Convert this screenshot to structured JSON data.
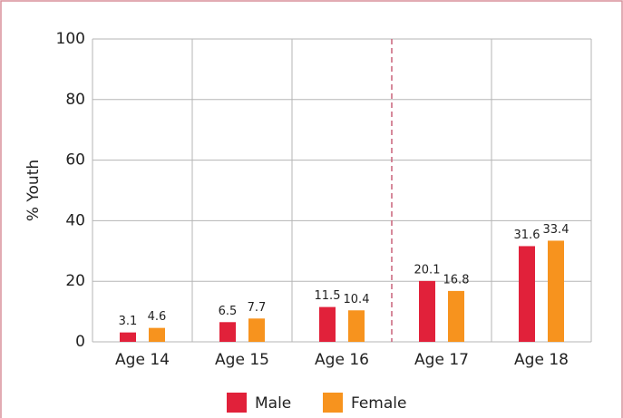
{
  "chart_data": {
    "type": "bar",
    "y_label": "% Youth",
    "categories": [
      "Age 14",
      "Age 15",
      "Age 16",
      "Age 17",
      "Age 18"
    ],
    "series": [
      {
        "name": "Male",
        "color": "#e1213a",
        "values": [
          3.1,
          6.5,
          11.5,
          20.1,
          31.6
        ]
      },
      {
        "name": "Female",
        "color": "#f7931e",
        "values": [
          4.6,
          7.7,
          10.4,
          16.8,
          33.4
        ]
      }
    ],
    "ylim": [
      0,
      100
    ],
    "yticks": [
      0,
      20,
      40,
      60,
      80,
      100
    ],
    "grid": true
  }
}
